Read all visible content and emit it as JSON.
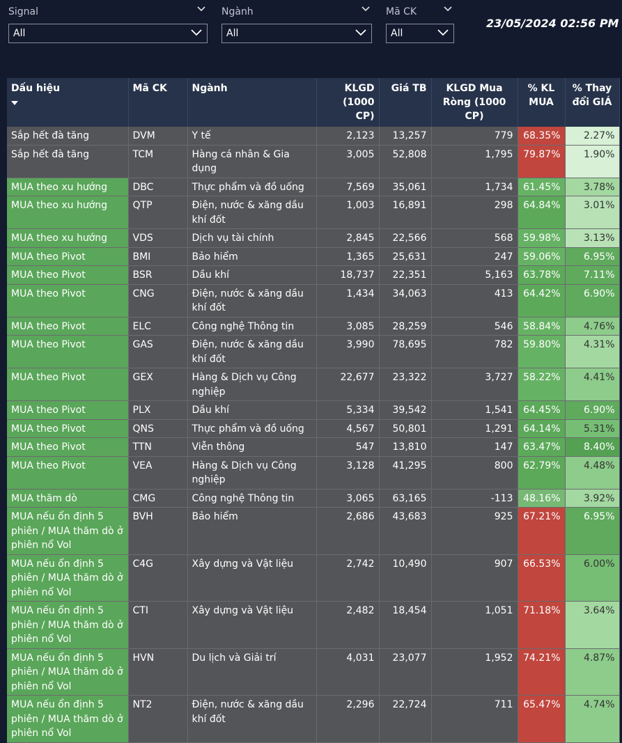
{
  "filters": [
    {
      "label": "Signal",
      "value": "All"
    },
    {
      "label": "Ngành",
      "value": "All"
    },
    {
      "label": "Mã CK",
      "value": "All"
    }
  ],
  "timestamp": "23/05/2024 02:56 PM",
  "table": {
    "columns": [
      "Dấu hiệu",
      "Mã CK",
      "Ngành",
      "KLGD (1000 CP)",
      "Giá TB",
      "KLGD Mua Ròng (1000 CP)",
      "% KL MUA",
      "% Thay đổi GIÁ"
    ],
    "rows": [
      {
        "signal": "Sắp hết đà tăng",
        "code": "DVM",
        "sector": "Y tế",
        "klgd": "2,123",
        "price": "13,257",
        "net": "779",
        "buy_pct": "68.35%",
        "chg": "2.27%"
      },
      {
        "signal": "Sắp hết đà tăng",
        "code": "TCM",
        "sector": "Hàng cá nhân & Gia dụng",
        "klgd": "3,005",
        "price": "52,808",
        "net": "1,795",
        "buy_pct": "79.87%",
        "chg": "1.90%"
      },
      {
        "signal": "MUA theo xu hướng",
        "code": "DBC",
        "sector": "Thực phẩm và đồ uống",
        "klgd": "7,569",
        "price": "35,061",
        "net": "1,734",
        "buy_pct": "61.45%",
        "chg": "3.78%"
      },
      {
        "signal": "MUA theo xu hướng",
        "code": "QTP",
        "sector": "Điện, nước & xăng dầu khí đốt",
        "klgd": "1,003",
        "price": "16,891",
        "net": "298",
        "buy_pct": "64.84%",
        "chg": "3.01%"
      },
      {
        "signal": "MUA theo xu hướng",
        "code": "VDS",
        "sector": "Dịch vụ tài chính",
        "klgd": "2,845",
        "price": "22,566",
        "net": "568",
        "buy_pct": "59.98%",
        "chg": "3.13%"
      },
      {
        "signal": "MUA theo Pivot",
        "code": "BMI",
        "sector": "Bảo hiểm",
        "klgd": "1,365",
        "price": "25,631",
        "net": "247",
        "buy_pct": "59.06%",
        "chg": "6.95%"
      },
      {
        "signal": "MUA theo Pivot",
        "code": "BSR",
        "sector": "Dầu khí",
        "klgd": "18,737",
        "price": "22,351",
        "net": "5,163",
        "buy_pct": "63.78%",
        "chg": "7.11%"
      },
      {
        "signal": "MUA theo Pivot",
        "code": "CNG",
        "sector": "Điện, nước & xăng dầu khí đốt",
        "klgd": "1,434",
        "price": "34,063",
        "net": "413",
        "buy_pct": "64.42%",
        "chg": "6.90%"
      },
      {
        "signal": "MUA theo Pivot",
        "code": "ELC",
        "sector": "Công nghệ Thông tin",
        "klgd": "3,085",
        "price": "28,259",
        "net": "546",
        "buy_pct": "58.84%",
        "chg": "4.76%"
      },
      {
        "signal": "MUA theo Pivot",
        "code": "GAS",
        "sector": "Điện, nước & xăng dầu khí đốt",
        "klgd": "3,990",
        "price": "78,695",
        "net": "782",
        "buy_pct": "59.80%",
        "chg": "4.31%"
      },
      {
        "signal": "MUA theo Pivot",
        "code": "GEX",
        "sector": "Hàng & Dịch vụ Công nghiệp",
        "klgd": "22,677",
        "price": "23,322",
        "net": "3,727",
        "buy_pct": "58.22%",
        "chg": "4.41%"
      },
      {
        "signal": "MUA theo Pivot",
        "code": "PLX",
        "sector": "Dầu khí",
        "klgd": "5,334",
        "price": "39,542",
        "net": "1,541",
        "buy_pct": "64.45%",
        "chg": "6.90%"
      },
      {
        "signal": "MUA theo Pivot",
        "code": "QNS",
        "sector": "Thực phẩm và đồ uống",
        "klgd": "4,567",
        "price": "50,801",
        "net": "1,291",
        "buy_pct": "64.14%",
        "chg": "5.31%"
      },
      {
        "signal": "MUA theo Pivot",
        "code": "TTN",
        "sector": "Viễn thông",
        "klgd": "547",
        "price": "13,810",
        "net": "147",
        "buy_pct": "63.47%",
        "chg": "8.40%"
      },
      {
        "signal": "MUA theo Pivot",
        "code": "VEA",
        "sector": "Hàng & Dịch vụ Công nghiệp",
        "klgd": "3,128",
        "price": "41,295",
        "net": "800",
        "buy_pct": "62.79%",
        "chg": "4.48%"
      },
      {
        "signal": "MUA thăm dò",
        "code": "CMG",
        "sector": "Công nghệ Thông tin",
        "klgd": "3,065",
        "price": "63,165",
        "net": "-113",
        "buy_pct": "48.16%",
        "chg": "3.92%"
      },
      {
        "signal": "MUA nếu ổn định 5 phiên / MUA thăm dò ở phiên nổ Vol",
        "code": "BVH",
        "sector": "Bảo hiểm",
        "klgd": "2,686",
        "price": "43,683",
        "net": "925",
        "buy_pct": "67.21%",
        "chg": "6.95%"
      },
      {
        "signal": "MUA nếu ổn định 5 phiên / MUA thăm dò ở phiên nổ Vol",
        "code": "C4G",
        "sector": "Xây dựng và Vật liệu",
        "klgd": "2,742",
        "price": "10,490",
        "net": "907",
        "buy_pct": "66.53%",
        "chg": "6.00%"
      },
      {
        "signal": "MUA nếu ổn định 5 phiên / MUA thăm dò ở phiên nổ Vol",
        "code": "CTI",
        "sector": "Xây dựng và Vật liệu",
        "klgd": "2,482",
        "price": "18,454",
        "net": "1,051",
        "buy_pct": "71.18%",
        "chg": "3.64%"
      },
      {
        "signal": "MUA nếu ổn định 5 phiên / MUA thăm dò ở phiên nổ Vol",
        "code": "HVN",
        "sector": "Du lịch và Giải trí",
        "klgd": "4,031",
        "price": "23,077",
        "net": "1,952",
        "buy_pct": "74.21%",
        "chg": "4.87%"
      },
      {
        "signal": "MUA nếu ổn định 5 phiên / MUA thăm dò ở phiên nổ Vol",
        "code": "NT2",
        "sector": "Điện, nước & xăng dầu khí đốt",
        "klgd": "2,296",
        "price": "22,724",
        "net": "711",
        "buy_pct": "65.47%",
        "chg": "4.74%"
      }
    ]
  }
}
